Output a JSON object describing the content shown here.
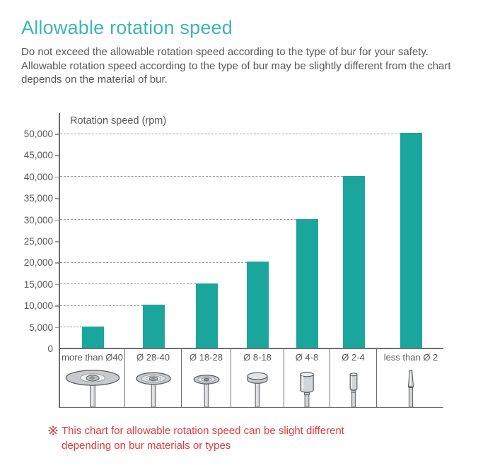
{
  "page": {
    "title": "Allowable rotation speed",
    "description": "Do not exceed the allowable rotation speed according to the type of bur for your safety. Allowable rotation speed according to the type of bur may be slightly different from the chart depends on the material of bur.",
    "note": {
      "symbol": "※",
      "text": "This chart for allowable rotation speed can be slight different depending on bur materials or types"
    }
  },
  "chart_data": {
    "type": "bar",
    "title": "Rotation speed (rpm)",
    "ylabel": "Rotation speed (rpm)",
    "xlabel": "",
    "categories": [
      "more than Ø40",
      "Ø 28-40",
      "Ø 18-28",
      "Ø 8-18",
      "Ø 4-8",
      "Ø 2-4",
      "less than Ø 2"
    ],
    "values": [
      5000,
      10000,
      15000,
      20000,
      30000,
      40000,
      50000
    ],
    "bar_icons": [
      "disc-large-bur-icon",
      "disc-medium-bur-icon",
      "disc-small-bur-icon",
      "wheel-bur-icon",
      "cylinder-bur-icon",
      "cylinder-small-bur-icon",
      "taper-bur-icon"
    ],
    "y_ticks": [
      {
        "value": 0,
        "label": "0"
      },
      {
        "value": 5000,
        "label": "5,000"
      },
      {
        "value": 10000,
        "label": "10,000"
      },
      {
        "value": 15000,
        "label": "15,000"
      },
      {
        "value": 20000,
        "label": "20,000"
      },
      {
        "value": 25000,
        "label": "25,000"
      },
      {
        "value": 30000,
        "label": "30,000"
      },
      {
        "value": 35000,
        "label": "35,000"
      },
      {
        "value": 40000,
        "label": "40,000"
      },
      {
        "value": 45000,
        "label": "45,000"
      },
      {
        "value": 50000,
        "label": "50,000"
      }
    ],
    "ylim": [
      0,
      55000
    ],
    "grid": "horizontal dashed lines only at bar values (5000,10000,15000,20000,30000,40000,50000), each drawn from the y-axis to its matching bar",
    "legend": "none"
  },
  "colors": {
    "bar": "#1BA69D",
    "title": "#3EB6B4",
    "text": "#58595B",
    "note": "#E23B3C",
    "axis": "#6D6E71",
    "gridline": "#9A9A9A"
  }
}
